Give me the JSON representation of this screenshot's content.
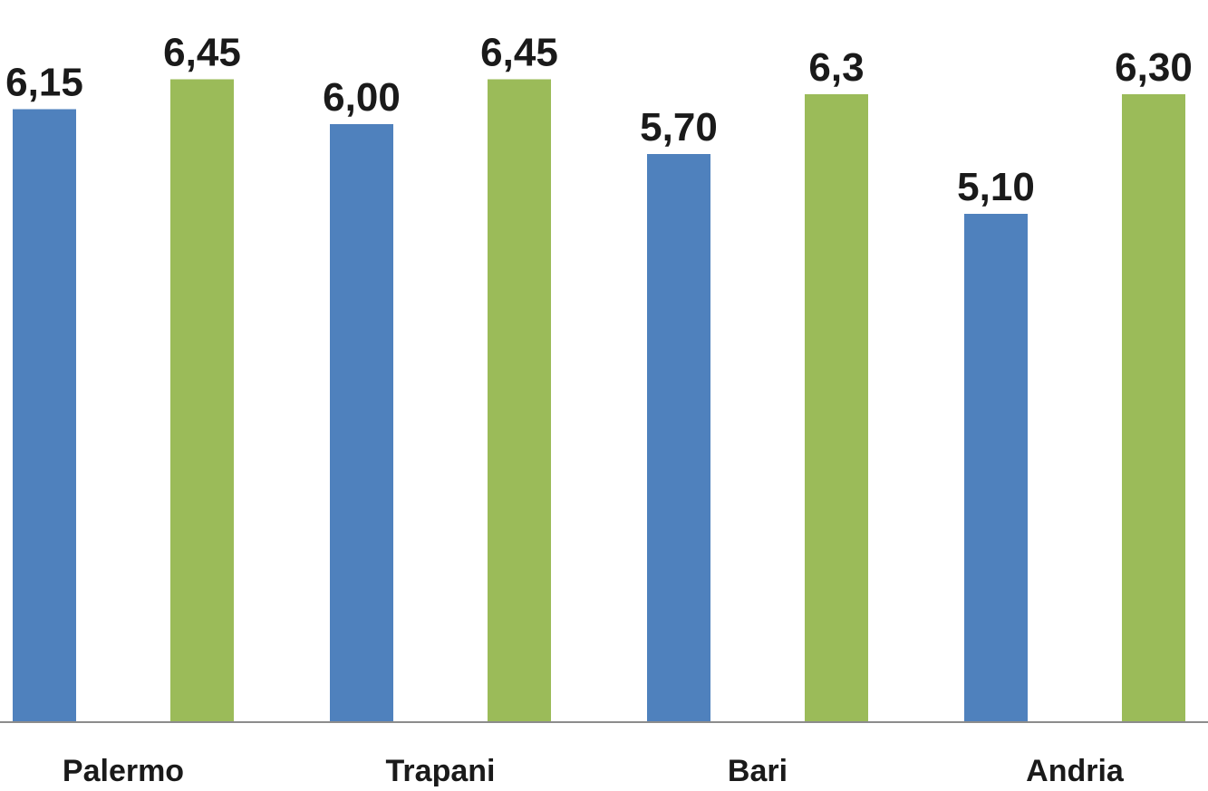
{
  "chart_data": {
    "type": "bar",
    "categories": [
      "Palermo",
      "Trapani",
      "Bari",
      "Andria"
    ],
    "series": [
      {
        "values": [
          6.15,
          6.0,
          5.7,
          5.1
        ],
        "labels": [
          "6,15",
          "6,00",
          "5,70",
          "5,10"
        ],
        "color": "#4f81bd"
      },
      {
        "values": [
          6.45,
          6.45,
          6.3,
          6.3
        ],
        "labels": [
          "6,45",
          "6,45",
          "6,3",
          "6,30"
        ],
        "color": "#9bbb59"
      }
    ],
    "ylim": [
      0,
      7
    ],
    "grid": false,
    "legend": "none"
  }
}
